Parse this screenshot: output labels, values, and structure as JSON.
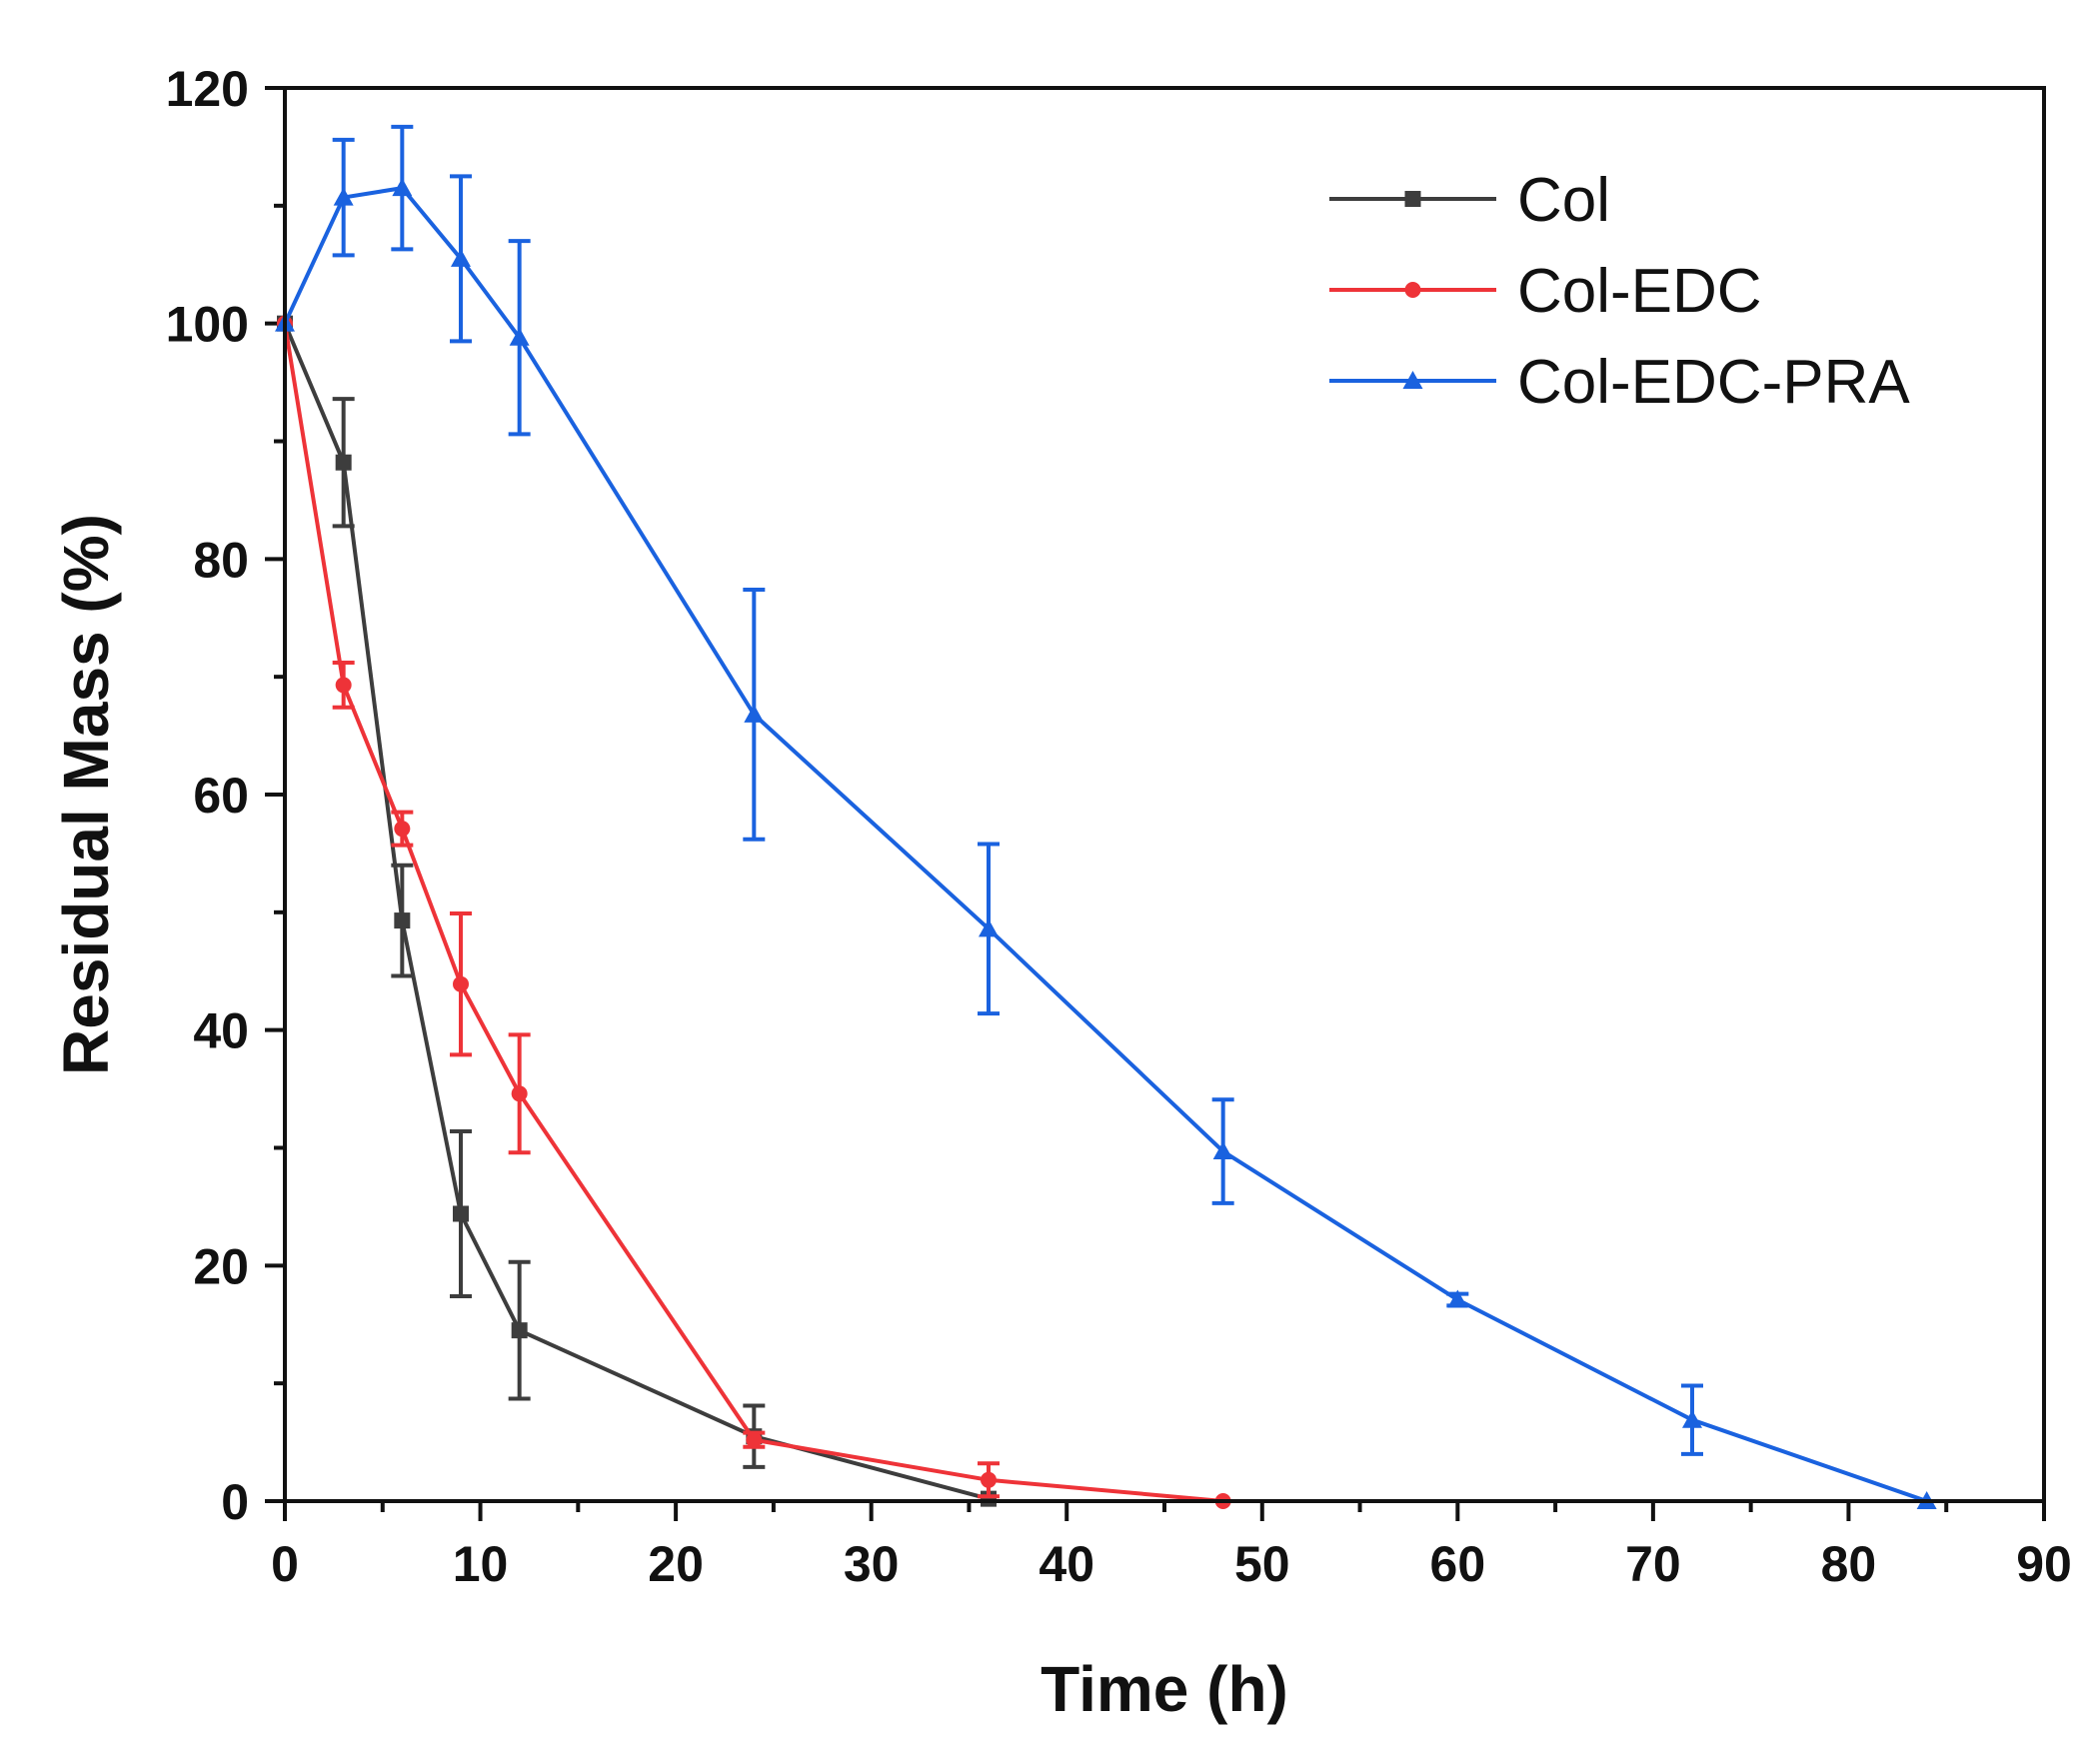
{
  "chart_data": {
    "type": "line",
    "title": "",
    "xlabel": "Time (h)",
    "ylabel": "Residual Mass (%)",
    "xlim": [
      0,
      90
    ],
    "ylim": [
      0,
      120
    ],
    "xticks": [
      0,
      10,
      20,
      30,
      40,
      50,
      60,
      70,
      80,
      90
    ],
    "yticks": [
      0,
      20,
      40,
      60,
      80,
      100,
      120
    ],
    "xtick_labels": [
      "0",
      "10",
      "20",
      "30",
      "40",
      "50",
      "60",
      "70",
      "80",
      "90"
    ],
    "ytick_labels": [
      "0",
      "20",
      "40",
      "60",
      "80",
      "100",
      "120"
    ],
    "grid": false,
    "legend_position": "top-right",
    "series": [
      {
        "name": "Col",
        "color": "#3d3d3d",
        "marker": "square",
        "x": [
          0,
          3,
          6,
          9,
          12,
          24,
          36
        ],
        "y": [
          100,
          88.2,
          49.3,
          24.4,
          14.5,
          5.5,
          0.2
        ],
        "err": [
          0,
          5.4,
          4.7,
          7.0,
          5.8,
          2.6,
          0
        ]
      },
      {
        "name": "Col-EDC",
        "color": "#ee3338",
        "marker": "circle",
        "x": [
          0,
          3,
          6,
          9,
          12,
          24,
          36,
          48
        ],
        "y": [
          100,
          69.3,
          57.1,
          43.9,
          34.6,
          5.2,
          1.8,
          0
        ],
        "err": [
          0,
          1.9,
          1.4,
          6.0,
          5.0,
          0.6,
          1.4,
          0
        ]
      },
      {
        "name": "Col-EDC-PRA",
        "color": "#1a62df",
        "marker": "triangle",
        "x": [
          0,
          3,
          6,
          9,
          12,
          24,
          36,
          48,
          60,
          72,
          84
        ],
        "y": [
          100,
          110.7,
          111.5,
          105.5,
          98.8,
          66.8,
          48.6,
          29.7,
          17.1,
          6.9,
          0
        ],
        "err": [
          0,
          4.9,
          5.2,
          7.0,
          8.2,
          10.6,
          7.2,
          4.4,
          0.5,
          2.9,
          0
        ]
      }
    ]
  }
}
